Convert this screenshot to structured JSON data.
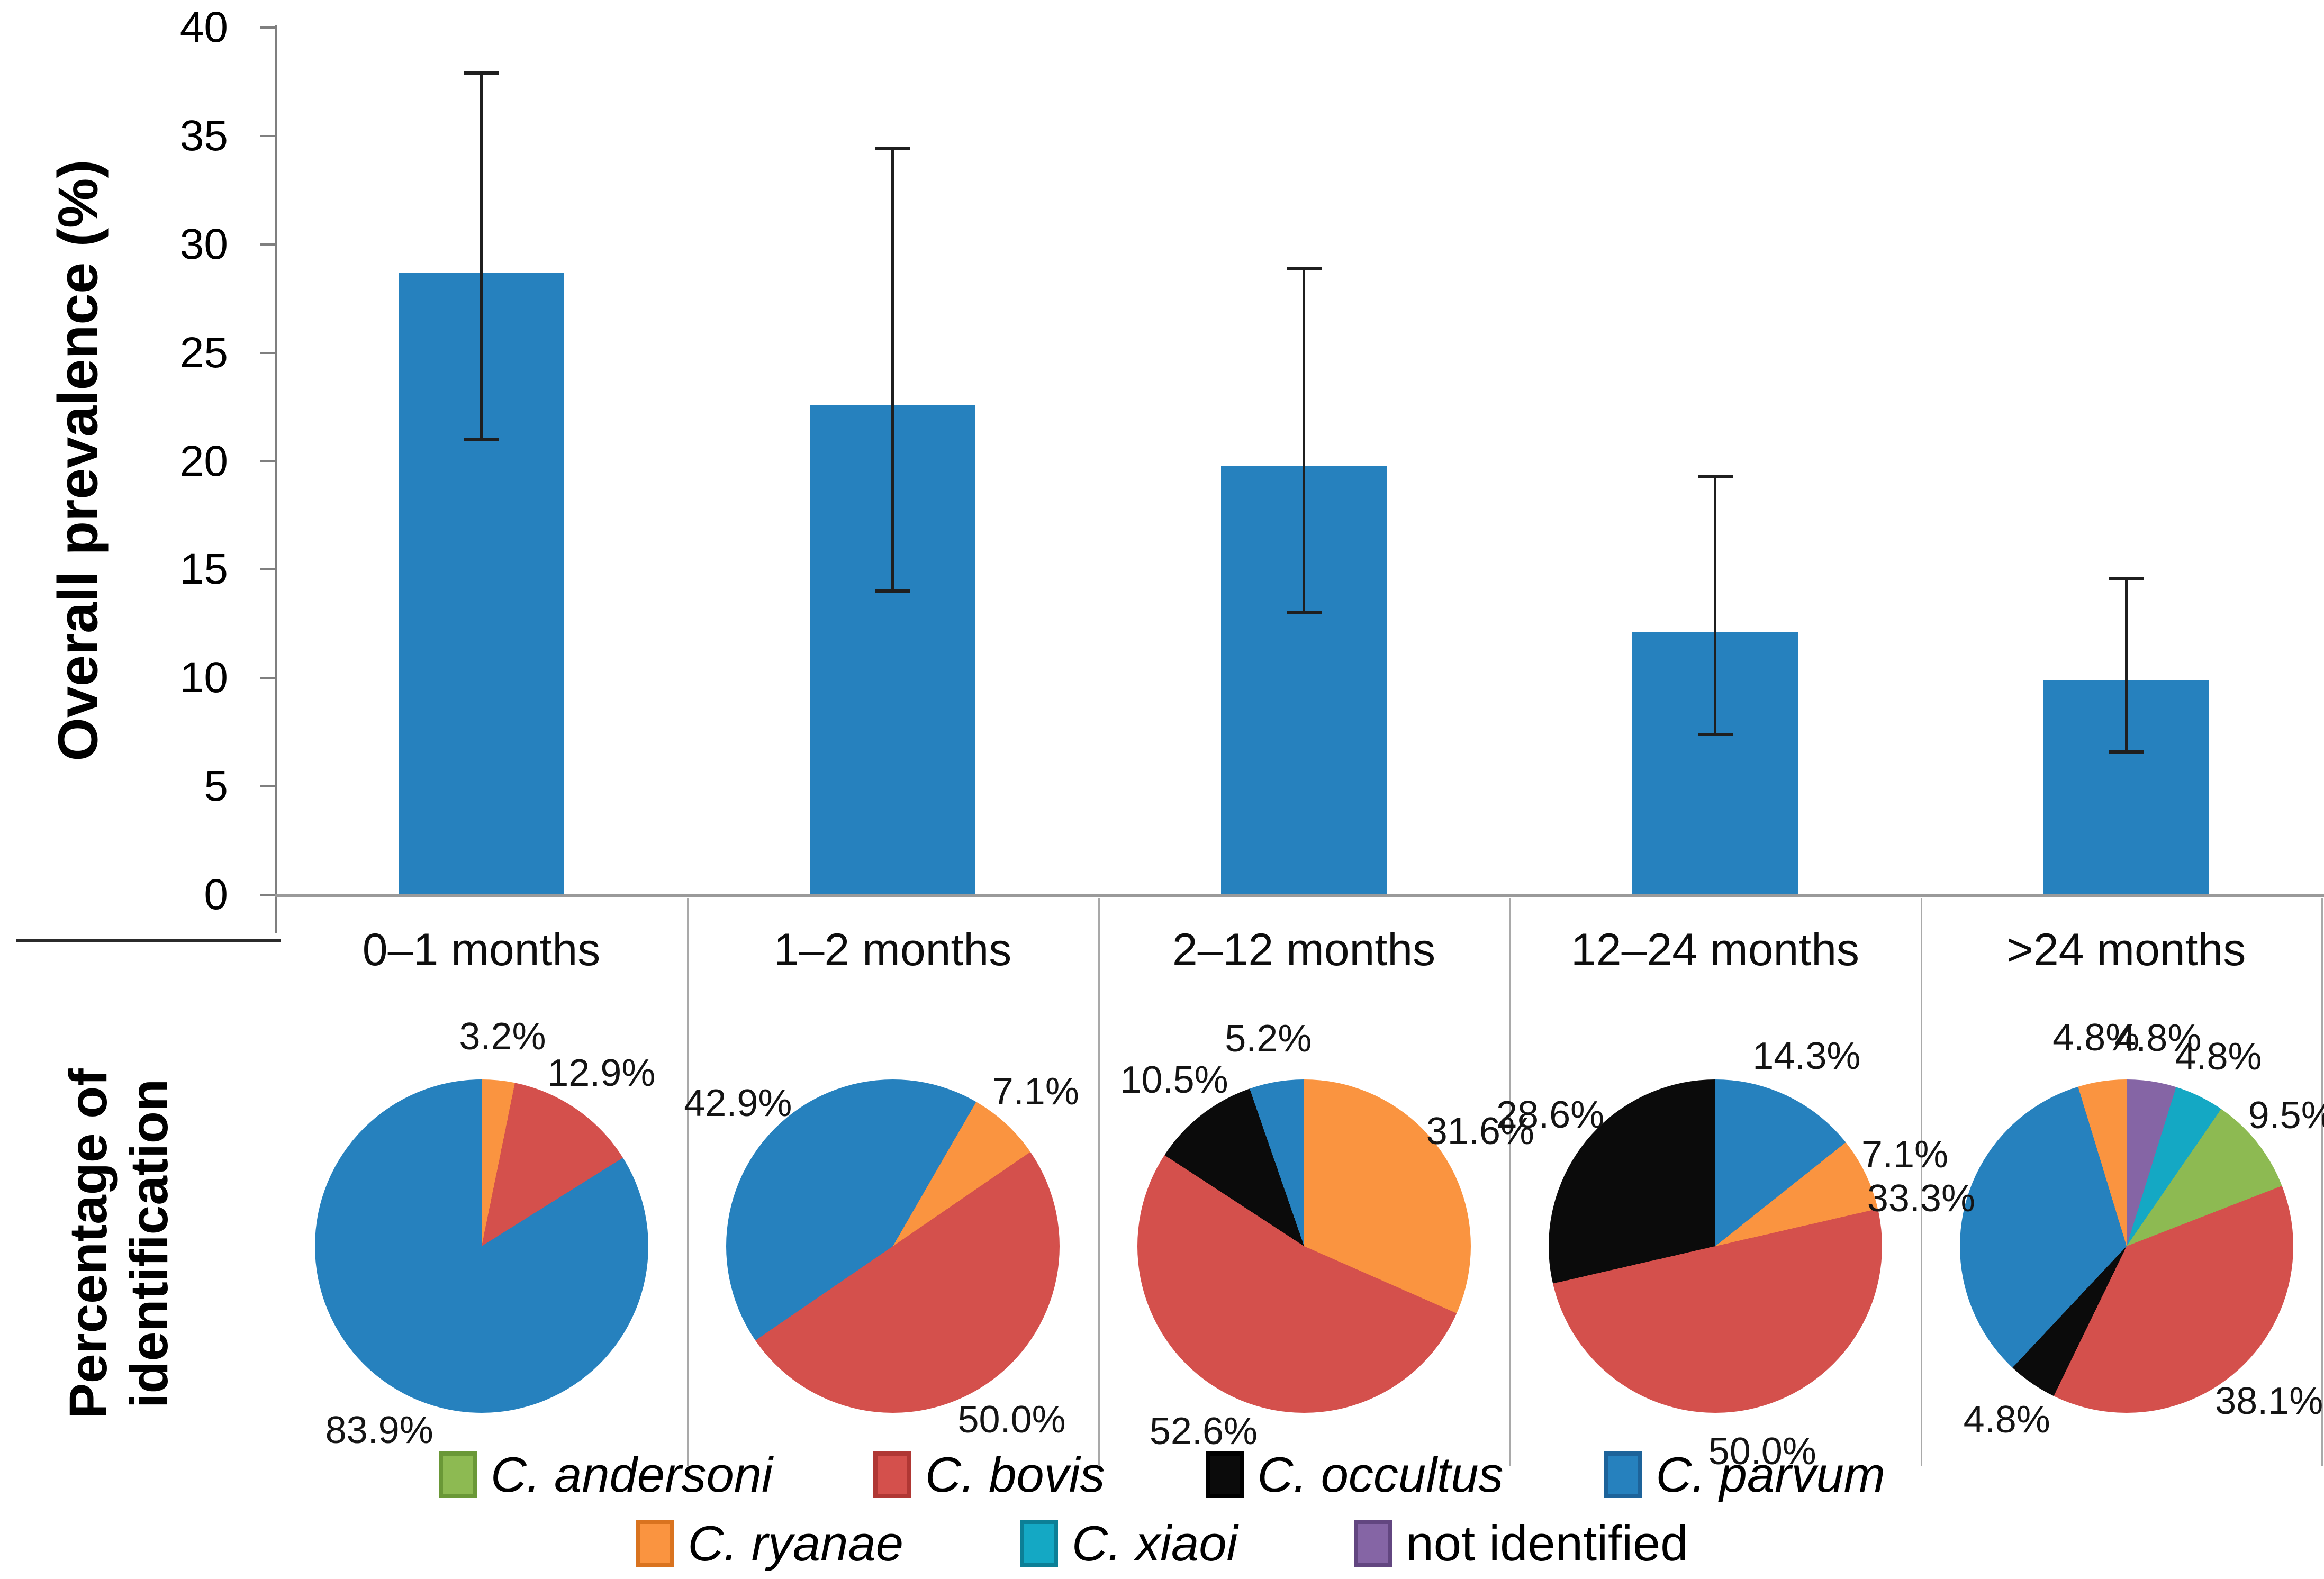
{
  "figure_title": "",
  "axis_titles": {
    "bar_y_label": "Overall prevalence (%)",
    "pie_row_label_line1": "Percentage of",
    "pie_row_label_line2": "identification"
  },
  "species_colors": {
    "C. andersoni": {
      "fill": "#8DBA52",
      "border": "#6A9837"
    },
    "C. bovis": {
      "fill": "#D4504C",
      "border": "#B03734"
    },
    "C. occultus": {
      "fill": "#0B0B0B",
      "border": "#000000"
    },
    "C. parvum": {
      "fill": "#2681BE",
      "border": "#1D639A"
    },
    "C. ryanae": {
      "fill": "#FA9440",
      "border": "#D9731F"
    },
    "C. xiaoi": {
      "fill": "#14A8C4",
      "border": "#0C7F96"
    },
    "not identified": {
      "fill": "#8565A5",
      "border": "#624680"
    }
  },
  "chart_data": [
    {
      "type": "bar",
      "title": "",
      "xlabel": "",
      "ylabel": "Overall prevalence (%)",
      "categories": [
        "0–1 months",
        "1–2 months",
        "2–12 months",
        "12–24 months",
        ">24 months"
      ],
      "values": [
        28.7,
        22.6,
        19.8,
        12.1,
        9.9
      ],
      "error_low": [
        21.0,
        14.0,
        13.0,
        7.4,
        6.6
      ],
      "error_high": [
        37.9,
        34.4,
        28.9,
        19.3,
        14.6
      ],
      "ylim": [
        0,
        40
      ],
      "ytick_step": 5,
      "grid": false,
      "legend_position": "none",
      "bar_color": "#2681BE"
    },
    {
      "type": "pie",
      "title": "Percentage of identification",
      "note": "slices listed clockwise from the rotation angle (degrees from 12 o'clock)",
      "pies": [
        {
          "category": "0–1 months",
          "rotation": 0,
          "slices": [
            {
              "name": "C. ryanae",
              "value": 3.2,
              "label": "3.2%"
            },
            {
              "name": "C. bovis",
              "value": 12.9,
              "label": "12.9%"
            },
            {
              "name": "C. parvum",
              "value": 83.9,
              "label": "83.9%"
            }
          ]
        },
        {
          "category": "1–2 months",
          "rotation": 30,
          "slices": [
            {
              "name": "C. ryanae",
              "value": 7.1,
              "label": "7.1%"
            },
            {
              "name": "C. bovis",
              "value": 50.0,
              "label": "50.0%"
            },
            {
              "name": "C. parvum",
              "value": 42.9,
              "label": "42.9%"
            }
          ]
        },
        {
          "category": "2–12 months",
          "rotation": 0,
          "slices": [
            {
              "name": "C. ryanae",
              "value": 31.6,
              "label": "31.6%"
            },
            {
              "name": "C. bovis",
              "value": 52.6,
              "label": "52.6%"
            },
            {
              "name": "C. occultus",
              "value": 10.5,
              "label": "10.5%"
            },
            {
              "name": "C. parvum",
              "value": 5.2,
              "label": "5.2%"
            }
          ]
        },
        {
          "category": "12–24 months",
          "rotation": 0,
          "slices": [
            {
              "name": "C. parvum",
              "value": 14.3,
              "label": "14.3%"
            },
            {
              "name": "C. ryanae",
              "value": 7.1,
              "label": "7.1%"
            },
            {
              "name": "C. bovis",
              "value": 50.0,
              "label": "50.0%"
            },
            {
              "name": "C. occultus",
              "value": 28.6,
              "label": "28.6%"
            }
          ]
        },
        {
          "category": ">24 months",
          "rotation": 0,
          "slices": [
            {
              "name": "not identified",
              "value": 4.8,
              "label": "4.8%"
            },
            {
              "name": "C. xiaoi",
              "value": 4.8,
              "label": "4.8%"
            },
            {
              "name": "C. andersoni",
              "value": 9.5,
              "label": "9.5%"
            },
            {
              "name": "C. bovis",
              "value": 38.1,
              "label": "38.1%"
            },
            {
              "name": "C. occultus",
              "value": 4.8,
              "label": "4.8%"
            },
            {
              "name": "C. parvum",
              "value": 33.3,
              "label": "33.3%"
            },
            {
              "name": "C. ryanae",
              "value": 4.8,
              "label": "4.8%"
            }
          ]
        }
      ]
    }
  ],
  "legend": {
    "rows": [
      [
        {
          "label": "C. andersoni",
          "italic": true
        },
        {
          "label": "C. bovis",
          "italic": true
        },
        {
          "label": "C. occultus",
          "italic": true
        },
        {
          "label": "C. parvum",
          "italic": true
        }
      ],
      [
        {
          "label": "C. ryanae",
          "italic": true
        },
        {
          "label": "C. xiaoi",
          "italic": true
        },
        {
          "label": "not identified",
          "italic": false
        }
      ]
    ]
  }
}
